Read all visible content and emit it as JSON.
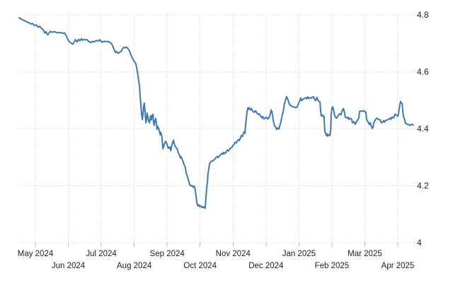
{
  "colors": {
    "line": "#3e79b4",
    "grid": "#cfcfcf",
    "tick": "#bdbdbd",
    "label": "#222222",
    "background": "#ffffff"
  },
  "chart_data": {
    "type": "line",
    "title": "",
    "legend": {
      "visible": false
    },
    "grid": {
      "visible": true,
      "style": "dotted"
    },
    "x_axis": {
      "tick_labels": [
        "May 2024",
        "Jun 2024",
        "Jul 2024",
        "Aug 2024",
        "Sep 2024",
        "Oct 2024",
        "Nov 2024",
        "Dec 2024",
        "Jan 2025",
        "Feb 2025",
        "Mar 2025",
        "Apr 2025"
      ],
      "range_note": "daily series from mid-April 2024 to mid-April 2025",
      "label_rows": "staggered"
    },
    "y_axis": {
      "side": "right",
      "min": 4.0,
      "max": 4.8,
      "ticks": [
        {
          "value": 4.8,
          "label": "4.8"
        },
        {
          "value": 4.6,
          "label": "4.6"
        },
        {
          "value": 4.4,
          "label": "4.4"
        },
        {
          "value": 4.2,
          "label": "4.2"
        },
        {
          "value": 4.0,
          "label": "4"
        }
      ]
    },
    "summary": {
      "start": 4.79,
      "min": 4.12,
      "end": 4.41
    },
    "points": [
      [
        0.0,
        4.79
      ],
      [
        0.005,
        4.785
      ],
      [
        0.013,
        4.78
      ],
      [
        0.02,
        4.775
      ],
      [
        0.025,
        4.772
      ],
      [
        0.031,
        4.768
      ],
      [
        0.034,
        4.77
      ],
      [
        0.039,
        4.762
      ],
      [
        0.043,
        4.765
      ],
      [
        0.048,
        4.757
      ],
      [
        0.052,
        4.76
      ],
      [
        0.057,
        4.752
      ],
      [
        0.061,
        4.748
      ],
      [
        0.065,
        4.736
      ],
      [
        0.068,
        4.741
      ],
      [
        0.072,
        4.73
      ],
      [
        0.075,
        4.734
      ],
      [
        0.079,
        4.742
      ],
      [
        0.084,
        4.739
      ],
      [
        0.09,
        4.741
      ],
      [
        0.095,
        4.738
      ],
      [
        0.1,
        4.737
      ],
      [
        0.106,
        4.738
      ],
      [
        0.111,
        4.735
      ],
      [
        0.115,
        4.737
      ],
      [
        0.118,
        4.73
      ],
      [
        0.122,
        4.718
      ],
      [
        0.125,
        4.709
      ],
      [
        0.131,
        4.701
      ],
      [
        0.136,
        4.697
      ],
      [
        0.14,
        4.706
      ],
      [
        0.143,
        4.713
      ],
      [
        0.147,
        4.705
      ],
      [
        0.151,
        4.714
      ],
      [
        0.154,
        4.709
      ],
      [
        0.158,
        4.716
      ],
      [
        0.161,
        4.711
      ],
      [
        0.165,
        4.714
      ],
      [
        0.168,
        4.712
      ],
      [
        0.172,
        4.713
      ],
      [
        0.176,
        4.707
      ],
      [
        0.179,
        4.704
      ],
      [
        0.183,
        4.703
      ],
      [
        0.186,
        4.707
      ],
      [
        0.19,
        4.705
      ],
      [
        0.194,
        4.709
      ],
      [
        0.197,
        4.71
      ],
      [
        0.201,
        4.708
      ],
      [
        0.204,
        4.713
      ],
      [
        0.208,
        4.706
      ],
      [
        0.211,
        4.704
      ],
      [
        0.215,
        4.707
      ],
      [
        0.22,
        4.706
      ],
      [
        0.226,
        4.706
      ],
      [
        0.229,
        4.704
      ],
      [
        0.233,
        4.7
      ],
      [
        0.237,
        4.692
      ],
      [
        0.24,
        4.68
      ],
      [
        0.244,
        4.668
      ],
      [
        0.247,
        4.671
      ],
      [
        0.251,
        4.665
      ],
      [
        0.254,
        4.668
      ],
      [
        0.258,
        4.671
      ],
      [
        0.262,
        4.681
      ],
      [
        0.265,
        4.686
      ],
      [
        0.269,
        4.684
      ],
      [
        0.272,
        4.687
      ],
      [
        0.276,
        4.681
      ],
      [
        0.28,
        4.672
      ],
      [
        0.283,
        4.66
      ],
      [
        0.287,
        4.648
      ],
      [
        0.29,
        4.64
      ],
      [
        0.292,
        4.636
      ],
      [
        0.294,
        4.632
      ],
      [
        0.296,
        4.626
      ],
      [
        0.297,
        4.618
      ],
      [
        0.299,
        4.605
      ],
      [
        0.301,
        4.585
      ],
      [
        0.303,
        4.564
      ],
      [
        0.305,
        4.547
      ],
      [
        0.306,
        4.525
      ],
      [
        0.308,
        4.488
      ],
      [
        0.31,
        4.452
      ],
      [
        0.312,
        4.432
      ],
      [
        0.314,
        4.458
      ],
      [
        0.315,
        4.477
      ],
      [
        0.317,
        4.49
      ],
      [
        0.319,
        4.458
      ],
      [
        0.321,
        4.421
      ],
      [
        0.323,
        4.433
      ],
      [
        0.324,
        4.455
      ],
      [
        0.326,
        4.441
      ],
      [
        0.328,
        4.428
      ],
      [
        0.33,
        4.421
      ],
      [
        0.332,
        4.438
      ],
      [
        0.333,
        4.446
      ],
      [
        0.335,
        4.431
      ],
      [
        0.337,
        4.446
      ],
      [
        0.339,
        4.451
      ],
      [
        0.34,
        4.426
      ],
      [
        0.342,
        4.412
      ],
      [
        0.344,
        4.43
      ],
      [
        0.346,
        4.436
      ],
      [
        0.348,
        4.416
      ],
      [
        0.349,
        4.398
      ],
      [
        0.351,
        4.408
      ],
      [
        0.353,
        4.401
      ],
      [
        0.355,
        4.394
      ],
      [
        0.357,
        4.379
      ],
      [
        0.358,
        4.388
      ],
      [
        0.36,
        4.381
      ],
      [
        0.362,
        4.368
      ],
      [
        0.364,
        4.33
      ],
      [
        0.366,
        4.338
      ],
      [
        0.367,
        4.344
      ],
      [
        0.371,
        4.356
      ],
      [
        0.375,
        4.343
      ],
      [
        0.378,
        4.331
      ],
      [
        0.382,
        4.336
      ],
      [
        0.384,
        4.323
      ],
      [
        0.387,
        4.344
      ],
      [
        0.391,
        4.36
      ],
      [
        0.392,
        4.35
      ],
      [
        0.396,
        4.336
      ],
      [
        0.4,
        4.33
      ],
      [
        0.403,
        4.315
      ],
      [
        0.405,
        4.31
      ],
      [
        0.409,
        4.297
      ],
      [
        0.41,
        4.302
      ],
      [
        0.414,
        4.289
      ],
      [
        0.418,
        4.273
      ],
      [
        0.421,
        4.264
      ],
      [
        0.423,
        4.245
      ],
      [
        0.427,
        4.228
      ],
      [
        0.43,
        4.214
      ],
      [
        0.432,
        4.203
      ],
      [
        0.435,
        4.199
      ],
      [
        0.437,
        4.201
      ],
      [
        0.441,
        4.195
      ],
      [
        0.443,
        4.199
      ],
      [
        0.446,
        4.185
      ],
      [
        0.448,
        4.163
      ],
      [
        0.45,
        4.141
      ],
      [
        0.452,
        4.131
      ],
      [
        0.453,
        4.129
      ],
      [
        0.455,
        4.133
      ],
      [
        0.457,
        4.127
      ],
      [
        0.459,
        4.13
      ],
      [
        0.462,
        4.124
      ],
      [
        0.464,
        4.127
      ],
      [
        0.466,
        4.123
      ],
      [
        0.47,
        4.126
      ],
      [
        0.471,
        4.12
      ],
      [
        0.473,
        4.155
      ],
      [
        0.475,
        4.195
      ],
      [
        0.477,
        4.216
      ],
      [
        0.478,
        4.24
      ],
      [
        0.48,
        4.257
      ],
      [
        0.482,
        4.275
      ],
      [
        0.484,
        4.283
      ],
      [
        0.487,
        4.286
      ],
      [
        0.491,
        4.288
      ],
      [
        0.495,
        4.293
      ],
      [
        0.498,
        4.298
      ],
      [
        0.502,
        4.303
      ],
      [
        0.504,
        4.299
      ],
      [
        0.507,
        4.304
      ],
      [
        0.511,
        4.31
      ],
      [
        0.513,
        4.314
      ],
      [
        0.516,
        4.31
      ],
      [
        0.518,
        4.317
      ],
      [
        0.521,
        4.313
      ],
      [
        0.525,
        4.319
      ],
      [
        0.527,
        4.326
      ],
      [
        0.53,
        4.322
      ],
      [
        0.534,
        4.33
      ],
      [
        0.536,
        4.333
      ],
      [
        0.539,
        4.335
      ],
      [
        0.541,
        4.341
      ],
      [
        0.545,
        4.346
      ],
      [
        0.547,
        4.353
      ],
      [
        0.55,
        4.35
      ],
      [
        0.552,
        4.357
      ],
      [
        0.556,
        4.362
      ],
      [
        0.557,
        4.358
      ],
      [
        0.561,
        4.369
      ],
      [
        0.563,
        4.377
      ],
      [
        0.566,
        4.373
      ],
      [
        0.568,
        4.384
      ],
      [
        0.57,
        4.39
      ],
      [
        0.572,
        4.384
      ],
      [
        0.573,
        4.406
      ],
      [
        0.575,
        4.432
      ],
      [
        0.577,
        4.458
      ],
      [
        0.579,
        4.473
      ],
      [
        0.581,
        4.468
      ],
      [
        0.582,
        4.474
      ],
      [
        0.586,
        4.466
      ],
      [
        0.588,
        4.471
      ],
      [
        0.591,
        4.463
      ],
      [
        0.595,
        4.458
      ],
      [
        0.599,
        4.463
      ],
      [
        0.602,
        4.455
      ],
      [
        0.606,
        4.45
      ],
      [
        0.608,
        4.453
      ],
      [
        0.611,
        4.446
      ],
      [
        0.615,
        4.438
      ],
      [
        0.617,
        4.443
      ],
      [
        0.62,
        4.434
      ],
      [
        0.624,
        4.439
      ],
      [
        0.627,
        4.441
      ],
      [
        0.629,
        4.434
      ],
      [
        0.633,
        4.439
      ],
      [
        0.636,
        4.452
      ],
      [
        0.638,
        4.466
      ],
      [
        0.64,
        4.46
      ],
      [
        0.642,
        4.447
      ],
      [
        0.643,
        4.433
      ],
      [
        0.645,
        4.42
      ],
      [
        0.647,
        4.41
      ],
      [
        0.651,
        4.402
      ],
      [
        0.652,
        4.397
      ],
      [
        0.654,
        4.403
      ],
      [
        0.658,
        4.399
      ],
      [
        0.66,
        4.411
      ],
      [
        0.663,
        4.426
      ],
      [
        0.665,
        4.441
      ],
      [
        0.669,
        4.463
      ],
      [
        0.672,
        4.49
      ],
      [
        0.676,
        4.508
      ],
      [
        0.677,
        4.513
      ],
      [
        0.681,
        4.501
      ],
      [
        0.683,
        4.491
      ],
      [
        0.686,
        4.483
      ],
      [
        0.69,
        4.479
      ],
      [
        0.694,
        4.477
      ],
      [
        0.697,
        4.476
      ],
      [
        0.701,
        4.474
      ],
      [
        0.704,
        4.476
      ],
      [
        0.706,
        4.484
      ],
      [
        0.71,
        4.497
      ],
      [
        0.713,
        4.508
      ],
      [
        0.715,
        4.499
      ],
      [
        0.719,
        4.504
      ],
      [
        0.722,
        4.506
      ],
      [
        0.726,
        4.509
      ],
      [
        0.728,
        4.505
      ],
      [
        0.731,
        4.512
      ],
      [
        0.733,
        4.506
      ],
      [
        0.737,
        4.509
      ],
      [
        0.74,
        4.507
      ],
      [
        0.742,
        4.511
      ],
      [
        0.746,
        4.512
      ],
      [
        0.747,
        4.505
      ],
      [
        0.751,
        4.499
      ],
      [
        0.754,
        4.51
      ],
      [
        0.758,
        4.497
      ],
      [
        0.762,
        4.494
      ],
      [
        0.763,
        4.468
      ],
      [
        0.765,
        4.445
      ],
      [
        0.769,
        4.448
      ],
      [
        0.771,
        4.44
      ],
      [
        0.772,
        4.443
      ],
      [
        0.774,
        4.391
      ],
      [
        0.778,
        4.377
      ],
      [
        0.78,
        4.382
      ],
      [
        0.781,
        4.374
      ],
      [
        0.785,
        4.38
      ],
      [
        0.787,
        4.376
      ],
      [
        0.789,
        4.398
      ],
      [
        0.79,
        4.448
      ],
      [
        0.792,
        4.472
      ],
      [
        0.794,
        4.477
      ],
      [
        0.797,
        4.462
      ],
      [
        0.799,
        4.446
      ],
      [
        0.803,
        4.437
      ],
      [
        0.806,
        4.441
      ],
      [
        0.808,
        4.448
      ],
      [
        0.812,
        4.453
      ],
      [
        0.815,
        4.449
      ],
      [
        0.817,
        4.461
      ],
      [
        0.821,
        4.471
      ],
      [
        0.824,
        4.456
      ],
      [
        0.826,
        4.441
      ],
      [
        0.83,
        4.437
      ],
      [
        0.833,
        4.441
      ],
      [
        0.835,
        4.433
      ],
      [
        0.839,
        4.437
      ],
      [
        0.842,
        4.433
      ],
      [
        0.844,
        4.421
      ],
      [
        0.848,
        4.425
      ],
      [
        0.851,
        4.416
      ],
      [
        0.853,
        4.421
      ],
      [
        0.857,
        4.431
      ],
      [
        0.86,
        4.437
      ],
      [
        0.862,
        4.461
      ],
      [
        0.866,
        4.463
      ],
      [
        0.869,
        4.461
      ],
      [
        0.873,
        4.463
      ],
      [
        0.876,
        4.46
      ],
      [
        0.878,
        4.458
      ],
      [
        0.88,
        4.431
      ],
      [
        0.883,
        4.425
      ],
      [
        0.887,
        4.415
      ],
      [
        0.889,
        4.421
      ],
      [
        0.892,
        4.409
      ],
      [
        0.894,
        4.401
      ],
      [
        0.896,
        4.405
      ],
      [
        0.898,
        4.421
      ],
      [
        0.901,
        4.429
      ],
      [
        0.905,
        4.437
      ],
      [
        0.907,
        4.436
      ],
      [
        0.91,
        4.433
      ],
      [
        0.914,
        4.431
      ],
      [
        0.916,
        4.423
      ],
      [
        0.919,
        4.421
      ],
      [
        0.923,
        4.429
      ],
      [
        0.925,
        4.423
      ],
      [
        0.928,
        4.429
      ],
      [
        0.932,
        4.431
      ],
      [
        0.935,
        4.433
      ],
      [
        0.939,
        4.437
      ],
      [
        0.941,
        4.433
      ],
      [
        0.944,
        4.441
      ],
      [
        0.948,
        4.438
      ],
      [
        0.952,
        4.452
      ],
      [
        0.955,
        4.448
      ],
      [
        0.959,
        4.444
      ],
      [
        0.961,
        4.457
      ],
      [
        0.964,
        4.484
      ],
      [
        0.966,
        4.496
      ],
      [
        0.968,
        4.491
      ],
      [
        0.97,
        4.488
      ],
      [
        0.971,
        4.468
      ],
      [
        0.973,
        4.444
      ],
      [
        0.977,
        4.428
      ],
      [
        0.978,
        4.42
      ],
      [
        0.982,
        4.416
      ],
      [
        0.986,
        4.415
      ],
      [
        0.989,
        4.412
      ],
      [
        0.993,
        4.415
      ],
      [
        0.996,
        4.416
      ],
      [
        0.998,
        4.413
      ]
    ]
  }
}
